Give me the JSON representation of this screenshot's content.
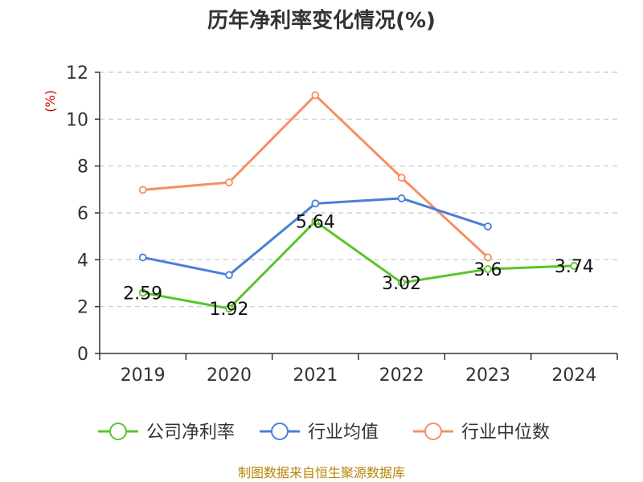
{
  "chart_data": {
    "type": "line",
    "title": "历年净利率变化情况(%)",
    "ylabel": "(%)",
    "xlabel": "",
    "ylim": [
      0,
      12
    ],
    "yticks": [
      0,
      2,
      4,
      6,
      8,
      10,
      12
    ],
    "categories": [
      "2019",
      "2020",
      "2021",
      "2022",
      "2023",
      "2024"
    ],
    "grid": true,
    "legend_position": "bottom",
    "series": [
      {
        "name": "公司净利率",
        "color": "#5ac42b",
        "values": [
          2.59,
          1.92,
          5.64,
          3.02,
          3.6,
          3.74
        ],
        "labels": [
          "2.59",
          "1.92",
          "5.64",
          "3.02",
          "3.6",
          "3.74"
        ]
      },
      {
        "name": "行业均值",
        "color": "#4a7fd9",
        "values": [
          4.1,
          3.35,
          6.4,
          6.62,
          5.42,
          null
        ]
      },
      {
        "name": "行业中位数",
        "color": "#f59060",
        "values": [
          6.98,
          7.3,
          11.02,
          7.5,
          4.1,
          null
        ]
      }
    ]
  },
  "source": "制图数据来自恒生聚源数据库"
}
